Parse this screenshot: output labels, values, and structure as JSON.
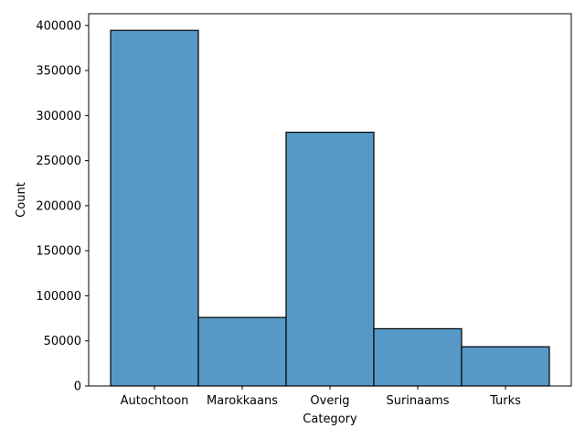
{
  "chart_data": {
    "type": "bar",
    "categories": [
      "Autochtoon",
      "Marokkaans",
      "Overig",
      "Surinaams",
      "Turks"
    ],
    "values": [
      394500,
      76000,
      281500,
      63500,
      43500
    ],
    "xlabel": "Category",
    "ylabel": "Count",
    "ylim": [
      0,
      413000
    ],
    "yticks": [
      0,
      50000,
      100000,
      150000,
      200000,
      250000,
      300000,
      350000,
      400000
    ],
    "grid": false,
    "bar_color": "#5799c6",
    "edge_color": "#000000"
  }
}
